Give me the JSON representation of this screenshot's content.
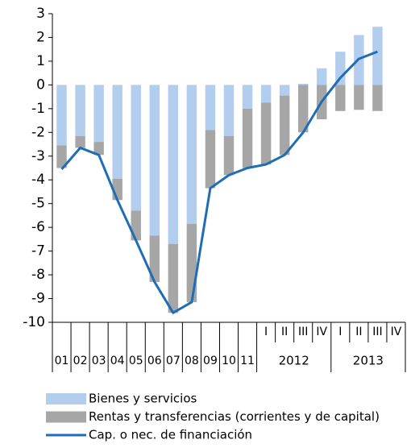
{
  "chart_data": {
    "type": "bar_line",
    "categories": [
      "01",
      "02",
      "03",
      "04",
      "05",
      "06",
      "07",
      "08",
      "09",
      "10",
      "11",
      "I",
      "II",
      "III",
      "IV",
      "I",
      "II",
      "III",
      "IV"
    ],
    "groups": [
      null,
      null,
      null,
      null,
      null,
      null,
      null,
      null,
      null,
      null,
      null,
      "2012",
      "2012",
      "2012",
      "2012",
      "2013",
      "2013",
      "2013",
      "2013"
    ],
    "series": [
      {
        "name": "Bienes y servicios",
        "color": "#b3cdef",
        "kind": "bar",
        "values": [
          -2.55,
          -2.15,
          -2.4,
          -3.95,
          -5.3,
          -6.35,
          -6.7,
          -5.85,
          -1.9,
          -2.15,
          -1.0,
          -0.75,
          -0.45,
          0.05,
          0.7,
          1.4,
          2.1,
          2.45,
          null
        ]
      },
      {
        "name": "Rentas y transferencias (corrientes y de capital)",
        "color": "#a6a6a6",
        "kind": "bar",
        "values": [
          -0.95,
          -0.5,
          -0.55,
          -0.9,
          -1.25,
          -1.95,
          -2.9,
          -3.3,
          -2.45,
          -1.65,
          -2.5,
          -2.6,
          -2.5,
          -2.0,
          -1.45,
          -1.1,
          -1.05,
          -1.1,
          null
        ]
      },
      {
        "name": "Cap. o nec. de financiación",
        "color": "#1f6db5",
        "kind": "line",
        "values": [
          -3.55,
          -2.65,
          -2.95,
          -4.85,
          -6.55,
          -8.3,
          -9.6,
          -9.15,
          -4.35,
          -3.8,
          -3.5,
          -3.35,
          -2.95,
          -2.0,
          -0.7,
          0.3,
          1.1,
          1.4,
          null
        ]
      }
    ],
    "ylim": [
      -10,
      3
    ],
    "yticks": [
      -10,
      -9,
      -8,
      -7,
      -6,
      -5,
      -4,
      -3,
      -2,
      -1,
      0,
      1,
      2,
      3
    ]
  }
}
